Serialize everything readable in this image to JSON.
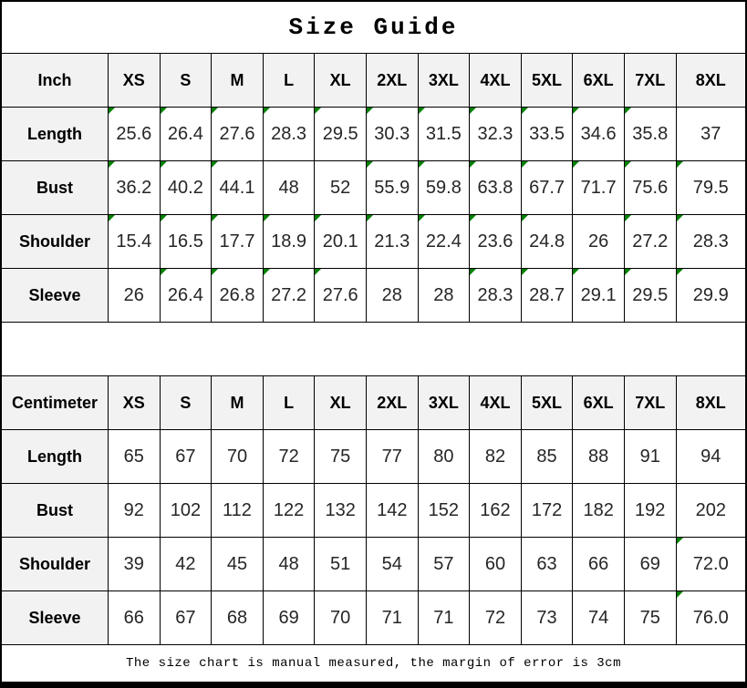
{
  "title": "Size Guide",
  "note": "The size chart is manual measured, the margin of error is 3cm",
  "colors": {
    "header_bg": "#f2f2f2",
    "grid_line": "#000000",
    "flag_green": "#008000"
  },
  "sizes": [
    "XS",
    "S",
    "M",
    "L",
    "XL",
    "2XL",
    "3XL",
    "4XL",
    "5XL",
    "6XL",
    "7XL",
    "8XL"
  ],
  "chart_data": [
    {
      "type": "table",
      "title": "Size Guide (Inch)",
      "unit_label": "Inch",
      "columns": [
        "XS",
        "S",
        "M",
        "L",
        "XL",
        "2XL",
        "3XL",
        "4XL",
        "5XL",
        "6XL",
        "7XL",
        "8XL"
      ],
      "rows": [
        {
          "label": "Length",
          "values": [
            "25.6",
            "26.4",
            "27.6",
            "28.3",
            "29.5",
            "30.3",
            "31.5",
            "32.3",
            "33.5",
            "34.6",
            "35.8",
            "37"
          ]
        },
        {
          "label": "Bust",
          "values": [
            "36.2",
            "40.2",
            "44.1",
            "48",
            "52",
            "55.9",
            "59.8",
            "63.8",
            "67.7",
            "71.7",
            "75.6",
            "79.5"
          ]
        },
        {
          "label": "Shoulder",
          "values": [
            "15.4",
            "16.5",
            "17.7",
            "18.9",
            "20.1",
            "21.3",
            "22.4",
            "23.6",
            "24.8",
            "26",
            "27.2",
            "28.3"
          ]
        },
        {
          "label": "Sleeve",
          "values": [
            "26",
            "26.4",
            "26.8",
            "27.2",
            "27.6",
            "28",
            "28",
            "28.3",
            "28.7",
            "29.1",
            "29.5",
            "29.9"
          ]
        }
      ]
    },
    {
      "type": "table",
      "title": "Size Guide (Centimeter)",
      "unit_label": "Centimeter",
      "columns": [
        "XS",
        "S",
        "M",
        "L",
        "XL",
        "2XL",
        "3XL",
        "4XL",
        "5XL",
        "6XL",
        "7XL",
        "8XL"
      ],
      "rows": [
        {
          "label": "Length",
          "values": [
            "65",
            "67",
            "70",
            "72",
            "75",
            "77",
            "80",
            "82",
            "85",
            "88",
            "91",
            "94"
          ]
        },
        {
          "label": "Bust",
          "values": [
            "92",
            "102",
            "112",
            "122",
            "132",
            "142",
            "152",
            "162",
            "172",
            "182",
            "192",
            "202"
          ]
        },
        {
          "label": "Shoulder",
          "values": [
            "39",
            "42",
            "45",
            "48",
            "51",
            "54",
            "57",
            "60",
            "63",
            "66",
            "69",
            "72.0"
          ]
        },
        {
          "label": "Sleeve",
          "values": [
            "66",
            "67",
            "68",
            "69",
            "70",
            "71",
            "71",
            "72",
            "73",
            "74",
            "75",
            "76.0"
          ]
        }
      ]
    }
  ]
}
